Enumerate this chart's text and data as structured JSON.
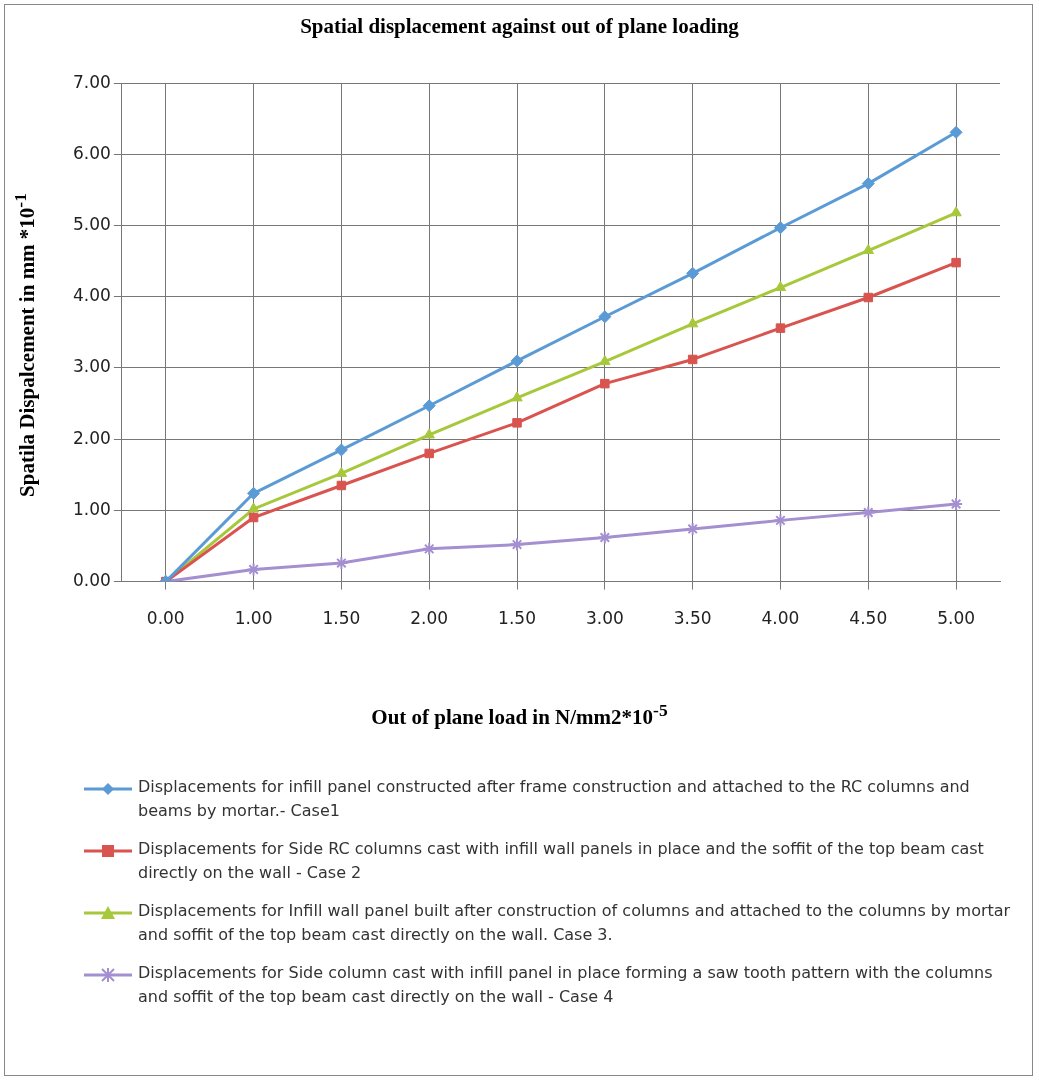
{
  "chart_data": {
    "type": "line",
    "title": "Spatial displacement against out of plane loading",
    "xlabel": "Out of plane load in N/mm2*10$^{-5}$",
    "ylabel": "Spatila Dispalcement in mm *10$^{-1}$",
    "categories": [
      "0.00",
      "1.00",
      "1.50",
      "2.00",
      "1.50",
      "3.00",
      "3.50",
      "4.00",
      "4.50",
      "5.00"
    ],
    "series": [
      {
        "name": "Displacements for infill panel constructed after frame construction and attached to the RC columns and beams by mortar.- Case1",
        "color": "#5b9bd5",
        "marker": "diamond",
        "values": [
          0,
          1.24,
          1.85,
          2.47,
          3.1,
          3.72,
          4.33,
          4.97,
          5.59,
          6.31
        ]
      },
      {
        "name": "Displacements for Side RC columns cast with infill wall panels in place and the soffit of the top beam cast directly on the wall - Case 2",
        "color": "#d9534f",
        "marker": "square",
        "values": [
          0,
          0.9,
          1.35,
          1.8,
          2.23,
          2.78,
          3.12,
          3.56,
          3.99,
          4.48
        ]
      },
      {
        "name": "Displacements for Infill wall panel built after construction of columns and attached to the columns by mortar and soffit of the top beam cast directly on the wall. Case 3.",
        "color": "#a8c83c",
        "marker": "triangle",
        "values": [
          0,
          1.02,
          1.52,
          2.06,
          2.58,
          3.09,
          3.62,
          4.13,
          4.65,
          5.18
        ]
      },
      {
        "name": "Displacements for Side column cast with infill panel in place forming a saw tooth pattern with the columns and soffit of the top beam cast directly on the wall - Case 4",
        "color": "#a48fd0",
        "marker": "cross",
        "values": [
          0,
          0.17,
          0.26,
          0.46,
          0.52,
          0.62,
          0.74,
          0.86,
          0.97,
          1.09
        ]
      }
    ],
    "ylim": [
      0,
      7
    ],
    "yticks": [
      {
        "value": 0,
        "label": "0.00"
      },
      {
        "value": 1,
        "label": "1.00"
      },
      {
        "value": 2,
        "label": "2.00"
      },
      {
        "value": 3,
        "label": "3.00"
      },
      {
        "value": 4,
        "label": "4.00"
      },
      {
        "value": 5,
        "label": "5.00"
      },
      {
        "value": 6,
        "label": "6.00"
      },
      {
        "value": 7,
        "label": "7.00"
      }
    ],
    "grid": true,
    "legend": "bottom"
  }
}
